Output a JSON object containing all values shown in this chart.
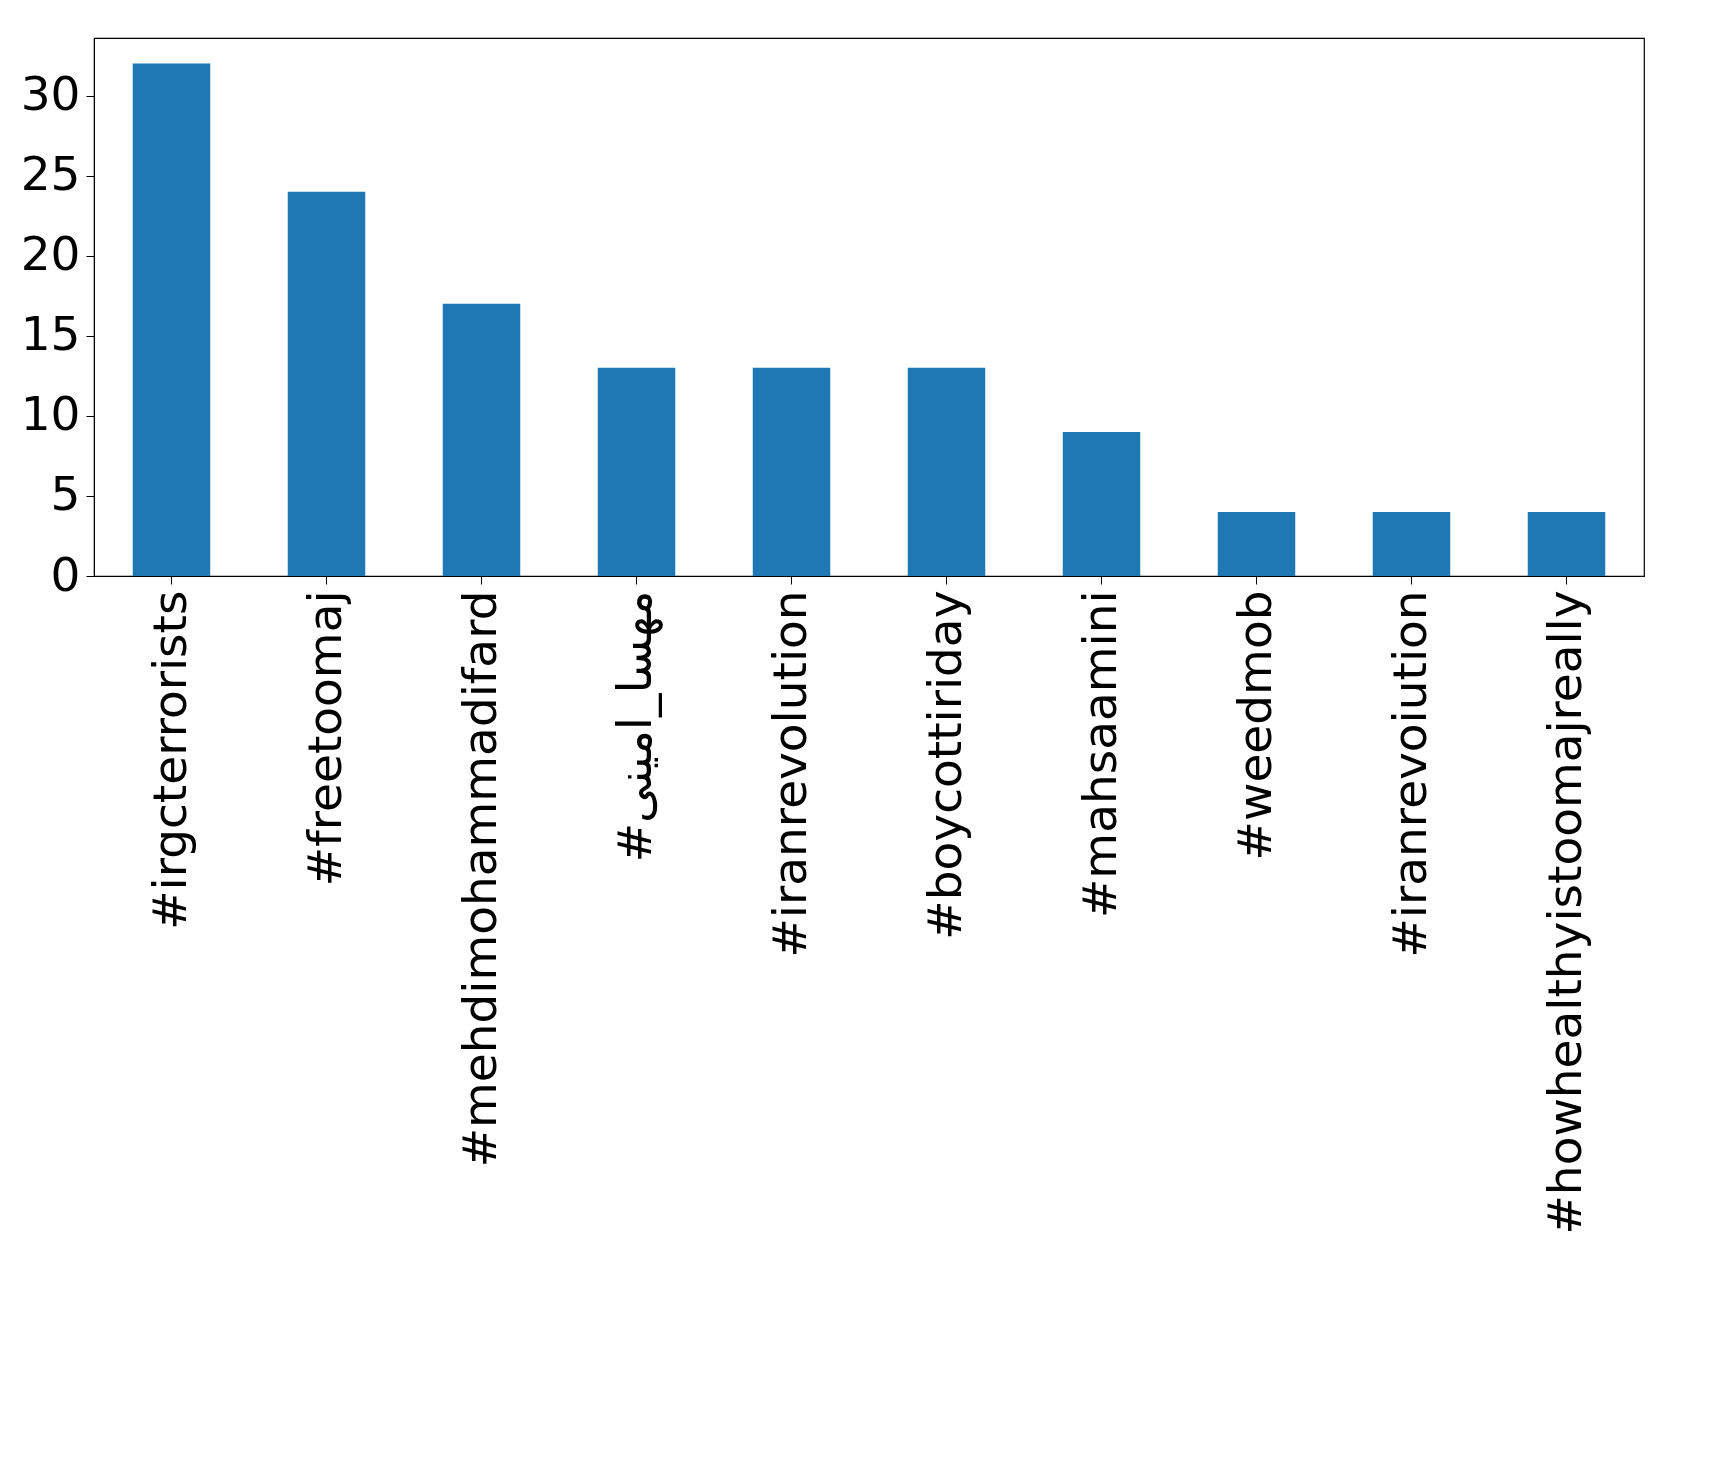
{
  "chart_data": {
    "type": "bar",
    "categories": [
      "#irgcterrorists",
      "#freetoomaj",
      "#mehdimohammadifard",
      "#مهسا_امینی",
      "#iranrevolution",
      "#boycottiriday",
      "#mahsaamini",
      "#weedmob",
      "#iranrevoiution",
      "#howhealthyistoomajreally"
    ],
    "values": [
      32,
      24,
      17,
      13,
      13,
      13,
      9,
      4,
      4,
      4
    ],
    "color": "#1f77b4",
    "ylim": [
      0,
      33.6
    ],
    "yticks": [
      0,
      5,
      10,
      15,
      20,
      25,
      30
    ],
    "grid": false
  }
}
